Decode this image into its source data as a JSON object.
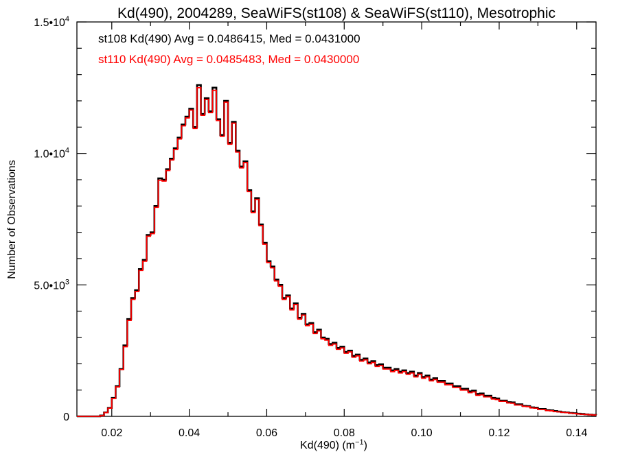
{
  "chart_data": {
    "type": "line",
    "title": "Kd(490), 2004289, SeaWiFS(st108) & SeaWiFS(st110), Mesotrophic",
    "xlabel": {
      "base": "Kd(490) (m",
      "sup": "−1",
      "close": ")"
    },
    "ylabel": "Number of Observations",
    "xlim": [
      0.011,
      0.145
    ],
    "ylim": [
      0,
      15000
    ],
    "grid": false,
    "step_style": "histogram",
    "x_ticks": [
      {
        "value": 0.02,
        "label": "0.02"
      },
      {
        "value": 0.04,
        "label": "0.04"
      },
      {
        "value": 0.06,
        "label": "0.06"
      },
      {
        "value": 0.08,
        "label": "0.08"
      },
      {
        "value": 0.1,
        "label": "0.10"
      },
      {
        "value": 0.12,
        "label": "0.12"
      },
      {
        "value": 0.14,
        "label": "0.14"
      }
    ],
    "y_ticks": [
      {
        "value": 0,
        "base": "0",
        "sup": ""
      },
      {
        "value": 5000,
        "base": "5.0•10",
        "sup": "3"
      },
      {
        "value": 10000,
        "base": "1.0•10",
        "sup": "4"
      },
      {
        "value": 15000,
        "base": "1.5•10",
        "sup": "4"
      }
    ],
    "legend": [
      {
        "text": "st108 Kd(490) Avg = 0.0486415, Med = 0.0431000",
        "color": "#000000"
      },
      {
        "text": "st110 Kd(490) Avg = 0.0485483, Med = 0.0430000",
        "color": "#ff0000"
      }
    ],
    "series": [
      {
        "color": "#000000",
        "points": [
          [
            0.011,
            0
          ],
          [
            0.016,
            0
          ],
          [
            0.017,
            30
          ],
          [
            0.018,
            150
          ],
          [
            0.019,
            320
          ],
          [
            0.02,
            700
          ],
          [
            0.021,
            1150
          ],
          [
            0.022,
            1800
          ],
          [
            0.023,
            2700
          ],
          [
            0.024,
            3700
          ],
          [
            0.025,
            4500
          ],
          [
            0.026,
            4800
          ],
          [
            0.027,
            5600
          ],
          [
            0.028,
            5950
          ],
          [
            0.029,
            6900
          ],
          [
            0.03,
            7000
          ],
          [
            0.031,
            8000
          ],
          [
            0.032,
            9050
          ],
          [
            0.033,
            9000
          ],
          [
            0.034,
            9400
          ],
          [
            0.035,
            9800
          ],
          [
            0.036,
            10200
          ],
          [
            0.037,
            10600
          ],
          [
            0.038,
            11100
          ],
          [
            0.039,
            11400
          ],
          [
            0.04,
            11700
          ],
          [
            0.041,
            11000
          ],
          [
            0.042,
            12600
          ],
          [
            0.043,
            11500
          ],
          [
            0.044,
            12100
          ],
          [
            0.045,
            11600
          ],
          [
            0.046,
            12500
          ],
          [
            0.047,
            11300
          ],
          [
            0.048,
            10700
          ],
          [
            0.049,
            12000
          ],
          [
            0.05,
            10400
          ],
          [
            0.051,
            11200
          ],
          [
            0.052,
            10100
          ],
          [
            0.053,
            9500
          ],
          [
            0.054,
            9700
          ],
          [
            0.055,
            8600
          ],
          [
            0.056,
            7800
          ],
          [
            0.057,
            8300
          ],
          [
            0.058,
            7300
          ],
          [
            0.059,
            6600
          ],
          [
            0.06,
            5900
          ],
          [
            0.061,
            5700
          ],
          [
            0.062,
            5200
          ],
          [
            0.063,
            5000
          ],
          [
            0.064,
            4500
          ],
          [
            0.065,
            4600
          ],
          [
            0.066,
            4100
          ],
          [
            0.067,
            4300
          ],
          [
            0.068,
            3750
          ],
          [
            0.069,
            3900
          ],
          [
            0.07,
            3500
          ],
          [
            0.071,
            3550
          ],
          [
            0.072,
            3200
          ],
          [
            0.073,
            3300
          ],
          [
            0.074,
            3000
          ],
          [
            0.075,
            2950
          ],
          [
            0.076,
            2750
          ],
          [
            0.077,
            2800
          ],
          [
            0.078,
            2600
          ],
          [
            0.079,
            2650
          ],
          [
            0.08,
            2450
          ],
          [
            0.081,
            2500
          ],
          [
            0.082,
            2300
          ],
          [
            0.083,
            2350
          ],
          [
            0.084,
            2150
          ],
          [
            0.085,
            2200
          ],
          [
            0.086,
            2050
          ],
          [
            0.087,
            2100
          ],
          [
            0.088,
            1950
          ],
          [
            0.089,
            1980
          ],
          [
            0.09,
            1850
          ],
          [
            0.091,
            1850
          ],
          [
            0.092,
            1750
          ],
          [
            0.093,
            1800
          ],
          [
            0.094,
            1700
          ],
          [
            0.095,
            1750
          ],
          [
            0.096,
            1650
          ],
          [
            0.097,
            1700
          ],
          [
            0.098,
            1550
          ],
          [
            0.099,
            1650
          ],
          [
            0.1,
            1500
          ],
          [
            0.101,
            1550
          ],
          [
            0.102,
            1400
          ],
          [
            0.103,
            1450
          ],
          [
            0.104,
            1350
          ],
          [
            0.105,
            1350
          ],
          [
            0.106,
            1250
          ],
          [
            0.107,
            1250
          ],
          [
            0.108,
            1150
          ],
          [
            0.109,
            1150
          ],
          [
            0.11,
            1050
          ],
          [
            0.111,
            1050
          ],
          [
            0.112,
            950
          ],
          [
            0.113,
            980
          ],
          [
            0.114,
            850
          ],
          [
            0.115,
            870
          ],
          [
            0.116,
            780
          ],
          [
            0.117,
            780
          ],
          [
            0.118,
            700
          ],
          [
            0.119,
            680
          ],
          [
            0.12,
            600
          ],
          [
            0.121,
            600
          ],
          [
            0.122,
            540
          ],
          [
            0.123,
            530
          ],
          [
            0.124,
            460
          ],
          [
            0.125,
            460
          ],
          [
            0.126,
            400
          ],
          [
            0.127,
            390
          ],
          [
            0.128,
            340
          ],
          [
            0.129,
            330
          ],
          [
            0.13,
            280
          ],
          [
            0.131,
            280
          ],
          [
            0.132,
            240
          ],
          [
            0.133,
            230
          ],
          [
            0.134,
            200
          ],
          [
            0.135,
            180
          ],
          [
            0.136,
            160
          ],
          [
            0.137,
            150
          ],
          [
            0.138,
            130
          ],
          [
            0.139,
            120
          ],
          [
            0.14,
            100
          ],
          [
            0.141,
            90
          ],
          [
            0.142,
            75
          ],
          [
            0.143,
            65
          ],
          [
            0.144,
            55
          ],
          [
            0.145,
            50
          ]
        ]
      },
      {
        "color": "#ff0000",
        "points": [
          [
            0.011,
            0
          ],
          [
            0.016,
            0
          ],
          [
            0.017,
            25
          ],
          [
            0.018,
            140
          ],
          [
            0.019,
            310
          ],
          [
            0.02,
            680
          ],
          [
            0.021,
            1120
          ],
          [
            0.022,
            1780
          ],
          [
            0.023,
            2650
          ],
          [
            0.024,
            3650
          ],
          [
            0.025,
            4450
          ],
          [
            0.026,
            4750
          ],
          [
            0.027,
            5550
          ],
          [
            0.028,
            5900
          ],
          [
            0.029,
            6850
          ],
          [
            0.03,
            6950
          ],
          [
            0.031,
            7950
          ],
          [
            0.032,
            8980
          ],
          [
            0.033,
            8950
          ],
          [
            0.034,
            9350
          ],
          [
            0.035,
            9750
          ],
          [
            0.036,
            10150
          ],
          [
            0.037,
            10550
          ],
          [
            0.038,
            11050
          ],
          [
            0.039,
            11350
          ],
          [
            0.04,
            11650
          ],
          [
            0.041,
            10950
          ],
          [
            0.042,
            12500
          ],
          [
            0.043,
            11450
          ],
          [
            0.044,
            12050
          ],
          [
            0.045,
            11550
          ],
          [
            0.046,
            12400
          ],
          [
            0.047,
            11250
          ],
          [
            0.048,
            10650
          ],
          [
            0.049,
            11950
          ],
          [
            0.05,
            10350
          ],
          [
            0.051,
            11150
          ],
          [
            0.052,
            10050
          ],
          [
            0.053,
            9450
          ],
          [
            0.054,
            9650
          ],
          [
            0.055,
            8550
          ],
          [
            0.056,
            7750
          ],
          [
            0.057,
            8250
          ],
          [
            0.058,
            7250
          ],
          [
            0.059,
            6550
          ],
          [
            0.06,
            5850
          ],
          [
            0.061,
            5650
          ],
          [
            0.062,
            5150
          ],
          [
            0.063,
            4950
          ],
          [
            0.064,
            4450
          ],
          [
            0.065,
            4550
          ],
          [
            0.066,
            4050
          ],
          [
            0.067,
            4250
          ],
          [
            0.068,
            3700
          ],
          [
            0.069,
            3850
          ],
          [
            0.07,
            3450
          ],
          [
            0.071,
            3500
          ],
          [
            0.072,
            3150
          ],
          [
            0.073,
            3250
          ],
          [
            0.074,
            2950
          ],
          [
            0.075,
            2900
          ],
          [
            0.076,
            2700
          ],
          [
            0.077,
            2750
          ],
          [
            0.078,
            2550
          ],
          [
            0.079,
            2600
          ],
          [
            0.08,
            2400
          ],
          [
            0.081,
            2450
          ],
          [
            0.082,
            2250
          ],
          [
            0.083,
            2300
          ],
          [
            0.084,
            2100
          ],
          [
            0.085,
            2150
          ],
          [
            0.086,
            2000
          ],
          [
            0.087,
            2050
          ],
          [
            0.088,
            1900
          ],
          [
            0.089,
            1930
          ],
          [
            0.09,
            1800
          ],
          [
            0.091,
            1800
          ],
          [
            0.092,
            1700
          ],
          [
            0.093,
            1750
          ],
          [
            0.094,
            1650
          ],
          [
            0.095,
            1700
          ],
          [
            0.096,
            1600
          ],
          [
            0.097,
            1650
          ],
          [
            0.098,
            1500
          ],
          [
            0.099,
            1600
          ],
          [
            0.1,
            1450
          ],
          [
            0.101,
            1500
          ],
          [
            0.102,
            1350
          ],
          [
            0.103,
            1400
          ],
          [
            0.104,
            1300
          ],
          [
            0.105,
            1300
          ],
          [
            0.106,
            1200
          ],
          [
            0.107,
            1200
          ],
          [
            0.108,
            1100
          ],
          [
            0.109,
            1100
          ],
          [
            0.11,
            1000
          ],
          [
            0.111,
            1000
          ],
          [
            0.112,
            900
          ],
          [
            0.113,
            930
          ],
          [
            0.114,
            800
          ],
          [
            0.115,
            820
          ],
          [
            0.116,
            740
          ],
          [
            0.117,
            740
          ],
          [
            0.118,
            660
          ],
          [
            0.119,
            640
          ],
          [
            0.12,
            570
          ],
          [
            0.121,
            570
          ],
          [
            0.122,
            510
          ],
          [
            0.123,
            500
          ],
          [
            0.124,
            430
          ],
          [
            0.125,
            430
          ],
          [
            0.126,
            380
          ],
          [
            0.127,
            370
          ],
          [
            0.128,
            320
          ],
          [
            0.129,
            310
          ],
          [
            0.13,
            260
          ],
          [
            0.131,
            260
          ],
          [
            0.132,
            220
          ],
          [
            0.133,
            210
          ],
          [
            0.134,
            180
          ],
          [
            0.135,
            170
          ],
          [
            0.136,
            150
          ],
          [
            0.137,
            140
          ],
          [
            0.138,
            120
          ],
          [
            0.139,
            110
          ],
          [
            0.14,
            90
          ],
          [
            0.141,
            80
          ],
          [
            0.142,
            70
          ],
          [
            0.143,
            60
          ],
          [
            0.144,
            50
          ],
          [
            0.145,
            45
          ]
        ]
      }
    ]
  }
}
